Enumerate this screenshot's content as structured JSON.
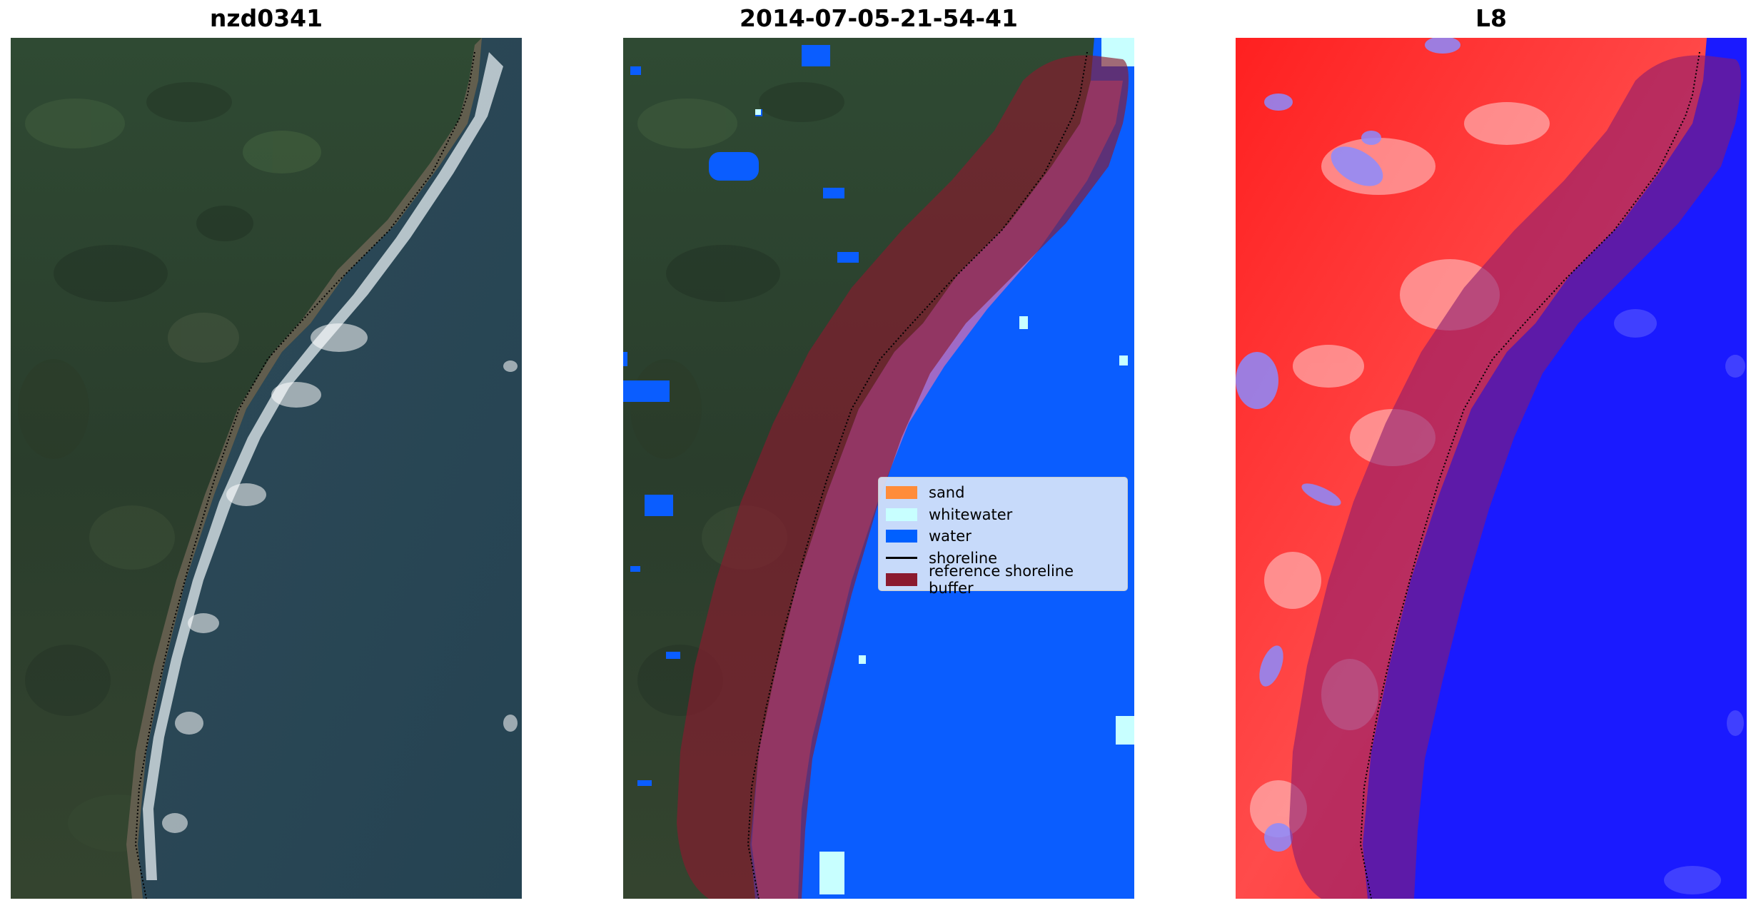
{
  "figure": {
    "panels": [
      {
        "title": "nzd0341"
      },
      {
        "title": "2014-07-05-21-54-41"
      },
      {
        "title": "L8"
      }
    ]
  },
  "legend": {
    "items": [
      {
        "label": "sand",
        "color": "#ff8c3a",
        "kind": "patch"
      },
      {
        "label": "whitewater",
        "color": "#c8ffff",
        "kind": "patch"
      },
      {
        "label": "water",
        "color": "#0060ff",
        "kind": "patch"
      },
      {
        "label": "shoreline",
        "color": "#000000",
        "kind": "line"
      },
      {
        "label": "reference shoreline buffer",
        "color": "#8b1a2e",
        "kind": "patch"
      }
    ]
  },
  "colors": {
    "water": "#0a5dff",
    "whitewater": "#c8ffff",
    "buffer": "#8b1a2e",
    "land_dark": "#2c3d2c",
    "ocean_rgb": "#2a4a5c",
    "index_high": "#ff1a1a",
    "index_low": "#1a1aff"
  }
}
